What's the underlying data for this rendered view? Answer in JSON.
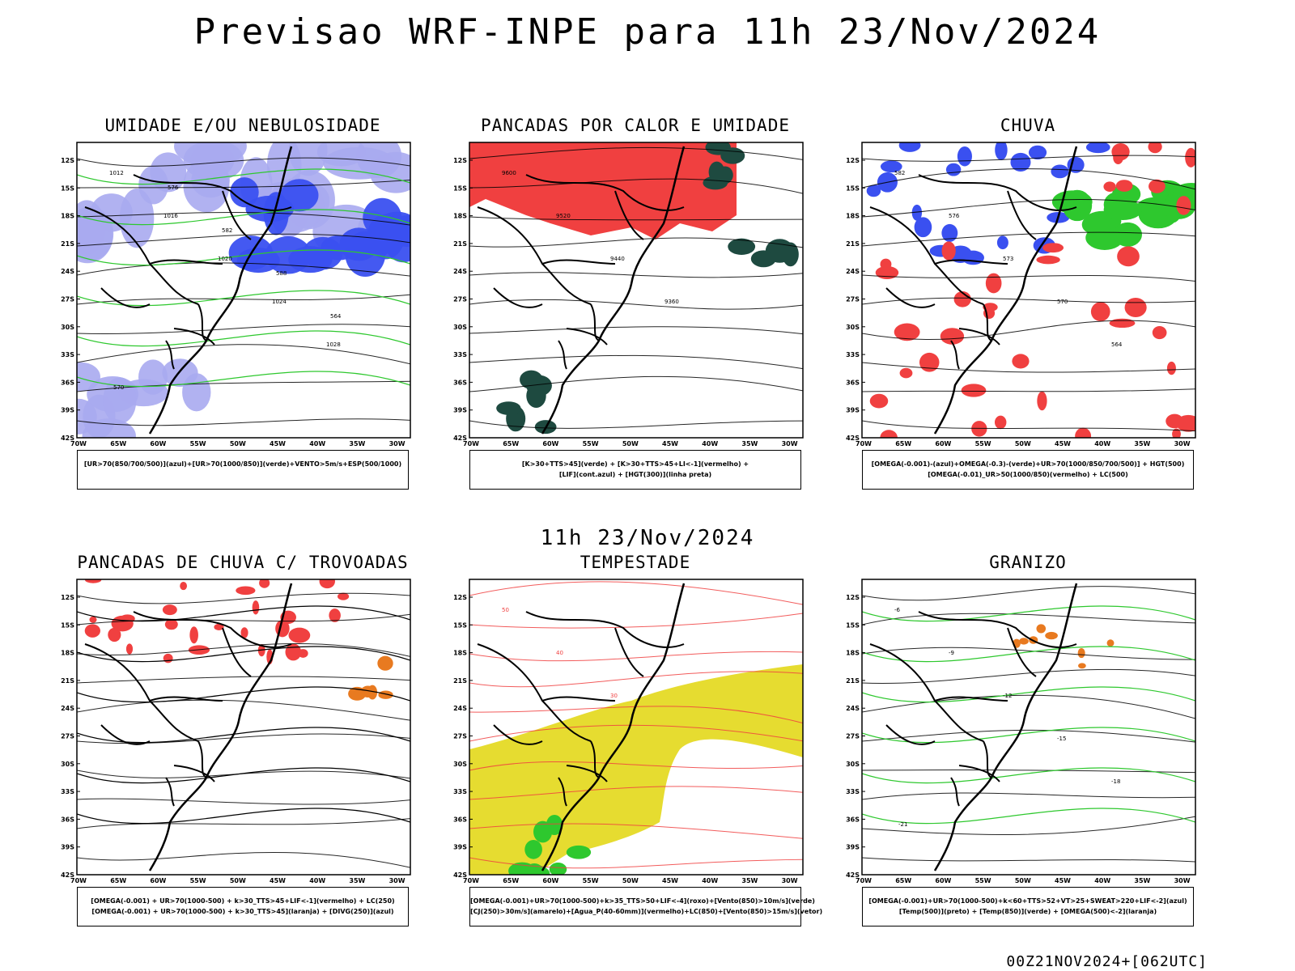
{
  "title": "Previsao WRF-INPE  para 11h 23/Nov/2024",
  "subtitle": "11h 23/Nov/2024",
  "footer": "00Z21NOV2024+[062UTC]",
  "axes": {
    "lat_labels": [
      "12S",
      "15S",
      "18S",
      "21S",
      "24S",
      "27S",
      "30S",
      "33S",
      "36S",
      "39S",
      "42S"
    ],
    "lon_labels": [
      "70W",
      "65W",
      "60W",
      "55W",
      "50W",
      "45W",
      "40W",
      "35W",
      "30W"
    ]
  },
  "colors": {
    "red": "#f04040",
    "blue": "#3a50f0",
    "lightblue": "#a8aaf0",
    "green": "#2ec82e",
    "darkteal": "#1e4a40",
    "yellow": "#e6dc30",
    "orange": "#e87a20",
    "purple": "#a020c0"
  },
  "panels": [
    {
      "title": "UMIDADE E/OU NEBULOSIDADE",
      "legend": [
        "[UR>70(850/700/500)](azul)+[UR>70(1000/850)](verde)+VENTO>5m/s+ESP(500/1000)"
      ],
      "contour_labels": [
        "1012",
        "1016",
        "1020",
        "1024",
        "1028",
        "570",
        "576",
        "582",
        "588",
        "564"
      ]
    },
    {
      "title": "PANCADAS POR CALOR E UMIDADE",
      "legend": [
        "[K>30+TTS>45](verde) + [K>30+TTS>45+LI<-1](vermelho) +",
        "[LIF](cont.azul) + [HGT(300)](linha preta)"
      ],
      "contour_labels": [
        "9600",
        "9520",
        "9440",
        "9360"
      ]
    },
    {
      "title": "CHUVA",
      "legend": [
        "[OMEGA(-0.001)-(azul)+OMEGA(-0.3)-(verde)+UR>70(1000/850/700/500)] + HGT(500)",
        "[OMEGA(-0.01)_UR>50(1000/850)(vermelho) + LC(500)"
      ],
      "contour_labels": [
        "582",
        "576",
        "573",
        "570",
        "564"
      ]
    },
    {
      "title": "PANCADAS DE CHUVA C/ TROVOADAS",
      "legend": [
        "[OMEGA(-0.001) + UR>70(1000-500) + k>30_TTS>45+LIF<-1](vermelho) + LC(250)",
        "[OMEGA(-0.001) + UR>70(1000-500) + k>30_TTS>45](laranja) + [DIVG(250)](azul)"
      ],
      "contour_labels": []
    },
    {
      "title": "TEMPESTADE",
      "legend": [
        "[OMEGA(-0.001)+UR>70(1000-500)+k>35_TTS>50+LIF<-4](roxo)+[Vento(850)>10m/s](verde)",
        "[CJ(250)>30m/s](amarelo)+[Agua_P(40-60mm)](vermelho)+LC(850)+[Vento(850)>15m/s](vetor)"
      ],
      "contour_labels": [
        "50",
        "40",
        "30"
      ]
    },
    {
      "title": "GRANIZO",
      "legend": [
        "[OMEGA(-0.001)+UR>70(1000-500)+k<60+TTS>52+VT>25+SWEAT>220+LIF<-2](azul)",
        "[Temp(500)](preto) + [Temp(850)](verde) + [OMEGA(500)<-2](laranja)"
      ],
      "contour_labels": [
        "-6",
        "-9",
        "-12",
        "-15",
        "-18",
        "-21"
      ]
    }
  ]
}
